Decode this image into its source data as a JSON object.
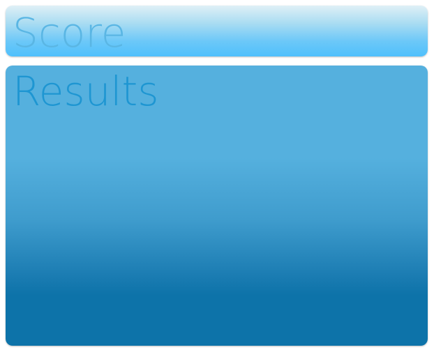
{
  "score_panel": {
    "title": "Score"
  },
  "results_panel": {
    "title": "Results"
  },
  "colors": {
    "score_title": "#5ab6e4",
    "results_title": "#1e96d2",
    "score_panel_top": "#dff0f6",
    "score_panel_bottom": "#4fc0fc",
    "results_panel_top": "#55b0de",
    "results_panel_bottom": "#0d73a9"
  }
}
